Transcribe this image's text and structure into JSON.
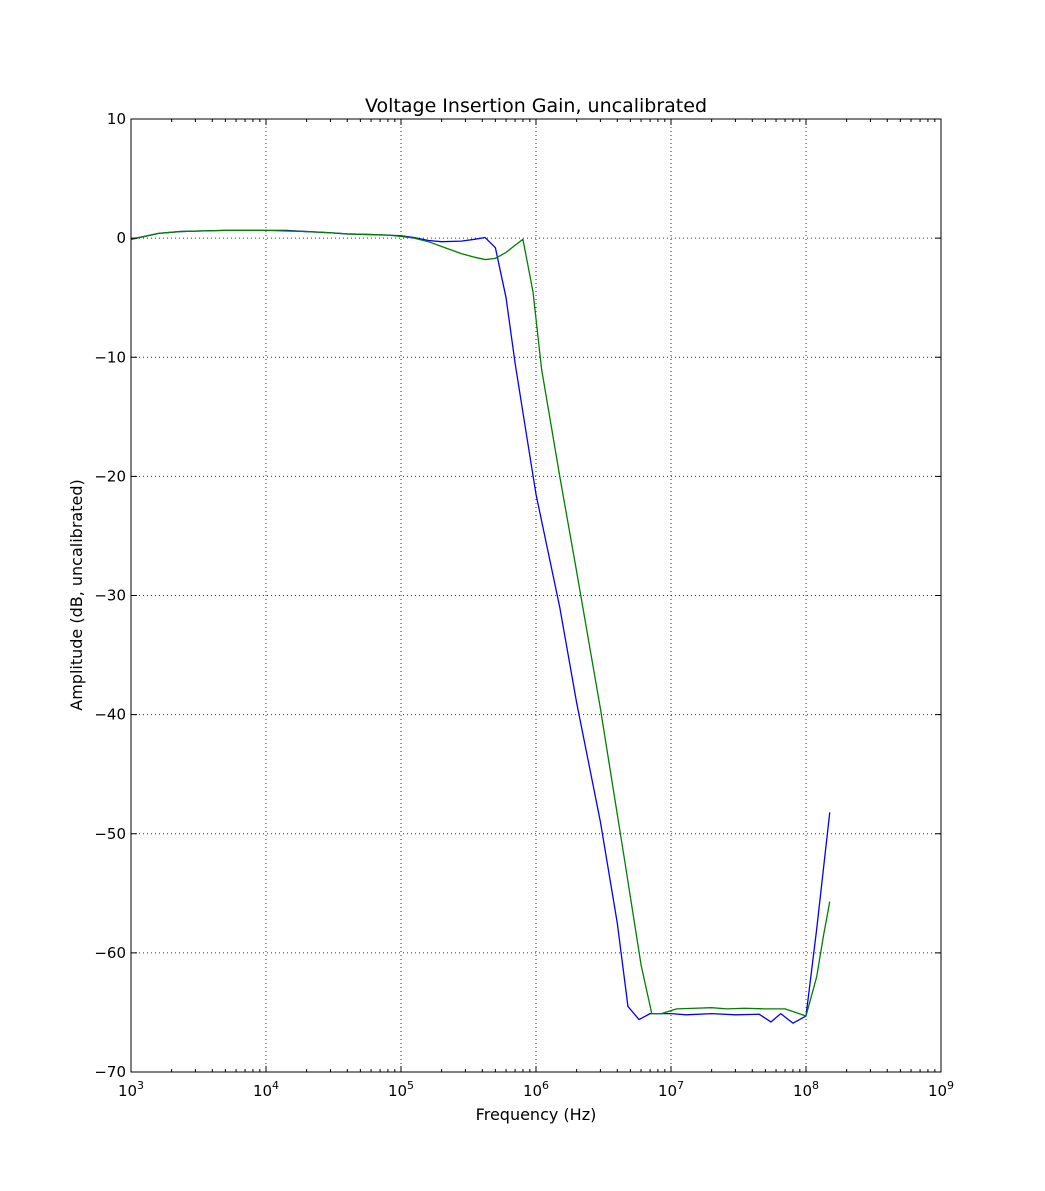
{
  "chart_data": {
    "type": "line",
    "title": "Voltage Insertion Gain, uncalibrated",
    "xlabel": "Frequency (Hz)",
    "ylabel": "Amplitude (dB, uncalibrated)",
    "xscale": "log",
    "xlim": [
      1000,
      1000000000
    ],
    "ylim": [
      -70,
      10
    ],
    "grid": true,
    "x_ticks": [
      {
        "value": 1000,
        "base": "10",
        "exp": "3"
      },
      {
        "value": 10000,
        "base": "10",
        "exp": "4"
      },
      {
        "value": 100000,
        "base": "10",
        "exp": "5"
      },
      {
        "value": 1000000,
        "base": "10",
        "exp": "6"
      },
      {
        "value": 10000000,
        "base": "10",
        "exp": "7"
      },
      {
        "value": 100000000,
        "base": "10",
        "exp": "8"
      },
      {
        "value": 1000000000,
        "base": "10",
        "exp": "9"
      }
    ],
    "y_ticks": [
      {
        "value": 10,
        "label": "10"
      },
      {
        "value": 0,
        "label": "0"
      },
      {
        "value": -10,
        "label": "−10"
      },
      {
        "value": -20,
        "label": "−20"
      },
      {
        "value": -30,
        "label": "−30"
      },
      {
        "value": -40,
        "label": "−40"
      },
      {
        "value": -50,
        "label": "−50"
      },
      {
        "value": -60,
        "label": "−60"
      },
      {
        "value": -70,
        "label": "−70"
      }
    ],
    "series": [
      {
        "color": "#0000ff",
        "points": [
          [
            1000,
            -0.1
          ],
          [
            1600,
            0.4
          ],
          [
            2300,
            0.55
          ],
          [
            3200,
            0.6
          ],
          [
            5000,
            0.65
          ],
          [
            7000,
            0.65
          ],
          [
            10000,
            0.65
          ],
          [
            14000,
            0.65
          ],
          [
            20000,
            0.55
          ],
          [
            30000,
            0.45
          ],
          [
            40000,
            0.35
          ],
          [
            60000,
            0.3
          ],
          [
            80000,
            0.25
          ],
          [
            100000,
            0.2
          ],
          [
            125000,
            0.05
          ],
          [
            160000,
            -0.2
          ],
          [
            200000,
            -0.3
          ],
          [
            280000,
            -0.25
          ],
          [
            350000,
            -0.1
          ],
          [
            420000,
            0.05
          ],
          [
            500000,
            -0.8
          ],
          [
            600000,
            -5.0
          ],
          [
            700000,
            -10.5
          ],
          [
            850000,
            -16.5
          ],
          [
            1000000,
            -21.5
          ],
          [
            1500000,
            -31.0
          ],
          [
            2000000,
            -39.0
          ],
          [
            3000000,
            -49.0
          ],
          [
            4000000,
            -57.5
          ],
          [
            4800000,
            -64.5
          ],
          [
            5800000,
            -65.6
          ],
          [
            7000000,
            -65.1
          ],
          [
            10000000,
            -65.1
          ],
          [
            13000000,
            -65.2
          ],
          [
            20000000,
            -65.1
          ],
          [
            30000000,
            -65.2
          ],
          [
            45000000,
            -65.15
          ],
          [
            55000000,
            -65.8
          ],
          [
            65000000,
            -65.1
          ],
          [
            80000000,
            -65.9
          ],
          [
            100000000,
            -65.3
          ],
          [
            120000000,
            -58.0
          ],
          [
            150000000,
            -48.2
          ]
        ]
      },
      {
        "color": "#007f00",
        "points": [
          [
            1000,
            -0.1
          ],
          [
            1600,
            0.4
          ],
          [
            2300,
            0.55
          ],
          [
            3200,
            0.6
          ],
          [
            5000,
            0.65
          ],
          [
            7000,
            0.65
          ],
          [
            10000,
            0.65
          ],
          [
            14000,
            0.6
          ],
          [
            20000,
            0.55
          ],
          [
            30000,
            0.45
          ],
          [
            40000,
            0.35
          ],
          [
            60000,
            0.3
          ],
          [
            80000,
            0.25
          ],
          [
            100000,
            0.15
          ],
          [
            125000,
            0.0
          ],
          [
            160000,
            -0.3
          ],
          [
            200000,
            -0.7
          ],
          [
            280000,
            -1.3
          ],
          [
            350000,
            -1.6
          ],
          [
            420000,
            -1.8
          ],
          [
            500000,
            -1.7
          ],
          [
            600000,
            -1.2
          ],
          [
            700000,
            -0.6
          ],
          [
            800000,
            -0.1
          ],
          [
            950000,
            -4.5
          ],
          [
            1100000,
            -11.0
          ],
          [
            1500000,
            -20.0
          ],
          [
            2000000,
            -28.0
          ],
          [
            3000000,
            -39.5
          ],
          [
            4500000,
            -52.0
          ],
          [
            6000000,
            -61.0
          ],
          [
            7200000,
            -65.1
          ],
          [
            8500000,
            -65.1
          ],
          [
            11000000,
            -64.7
          ],
          [
            15000000,
            -64.65
          ],
          [
            20000000,
            -64.6
          ],
          [
            26000000,
            -64.7
          ],
          [
            35000000,
            -64.65
          ],
          [
            50000000,
            -64.7
          ],
          [
            70000000,
            -64.7
          ],
          [
            100000000,
            -65.3
          ],
          [
            120000000,
            -62.0
          ],
          [
            135000000,
            -58.5
          ],
          [
            150000000,
            -55.7
          ]
        ]
      }
    ]
  }
}
